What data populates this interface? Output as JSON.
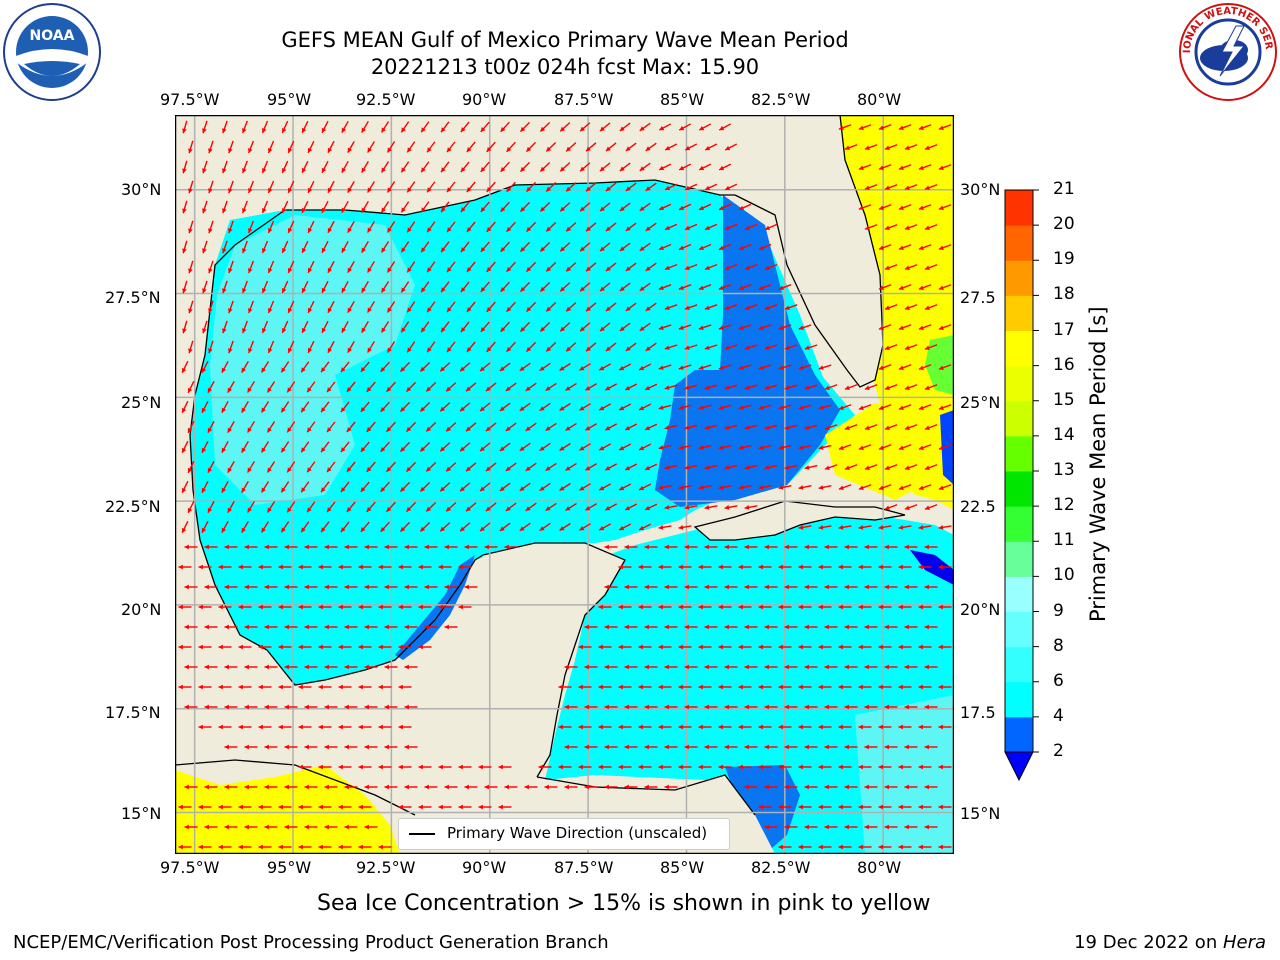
{
  "header": {
    "title_line1": "GEFS MEAN Gulf of Mexico Primary Wave Mean Period",
    "title_line2": "20221213 t00z 024h fcst   Max: 15.90"
  },
  "logos": {
    "left": "NOAA",
    "right": "NATIONAL WEATHER SERVICE"
  },
  "map": {
    "lon_labels": [
      "97.5°W",
      "95°W",
      "92.5°W",
      "90°W",
      "87.5°W",
      "85°W",
      "82.5°W",
      "80°W"
    ],
    "lat_labels_left": [
      "30°N",
      "27.5°N",
      "25°N",
      "22.5°N",
      "20°N",
      "17.5°N",
      "15°N"
    ],
    "lat_labels_right": [
      "30°N",
      "27.5",
      "25°N",
      "22.5",
      "20°N",
      "17.5",
      "15°N"
    ],
    "lon_range": [
      -98,
      -78.2
    ],
    "lat_range": [
      14,
      31.8
    ],
    "legend_label": "Primary Wave Direction (unscaled)",
    "land_color": "#efecdc",
    "arrow_color": "#ff0000"
  },
  "colorbar": {
    "title": "Primary Wave Mean Period [s]",
    "tick_labels": [
      "2",
      "4",
      "6",
      "8",
      "9",
      "10",
      "11",
      "12",
      "13",
      "14",
      "15",
      "16",
      "17",
      "18",
      "19",
      "20",
      "21"
    ],
    "colors": [
      "#0066ff",
      "#00ffff",
      "#33ffff",
      "#66ffff",
      "#99ffff",
      "#66ff99",
      "#33ff33",
      "#00e600",
      "#66ff00",
      "#ccff00",
      "#ecff00",
      "#ffff00",
      "#ffcc00",
      "#ff9900",
      "#ff6600",
      "#ff3300",
      "#ff0000"
    ],
    "extend_min_color": "#0000ff"
  },
  "footer": {
    "note": "Sea Ice Concentration > 15% is shown in pink to yellow",
    "left": "NCEP/EMC/Verification Post Processing Product Generation Branch",
    "right_prefix": "19 Dec 2022 on ",
    "right_host": "Hera"
  }
}
